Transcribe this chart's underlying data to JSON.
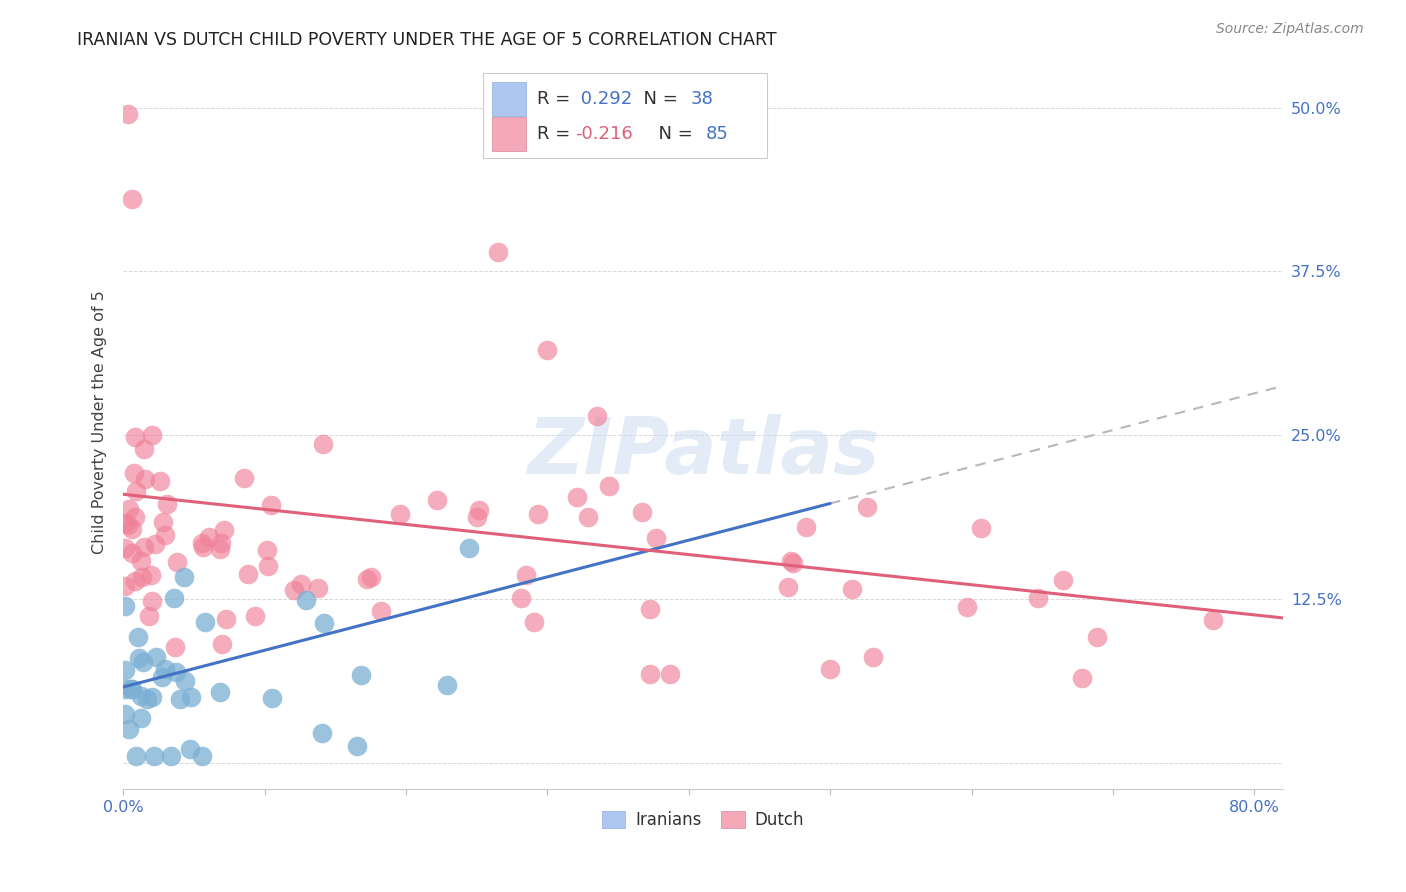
{
  "title": "IRANIAN VS DUTCH CHILD POVERTY UNDER THE AGE OF 5 CORRELATION CHART",
  "source": "Source: ZipAtlas.com",
  "ylabel": "Child Poverty Under the Age of 5",
  "ytick_values": [
    0.0,
    0.125,
    0.25,
    0.375,
    0.5
  ],
  "ytick_labels": [
    "",
    "12.5%",
    "25.0%",
    "37.5%",
    "50.0%"
  ],
  "xlim": [
    0.0,
    0.82
  ],
  "ylim": [
    -0.02,
    0.54
  ],
  "watermark": "ZIPatlas",
  "iranians_scatter_color": "#7bafd4",
  "dutch_scatter_color": "#f08098",
  "iranians_line_color": "#4472c4",
  "dutch_line_color": "#e0607a",
  "trend_line_color": "#b8b8b8",
  "iranians_R": 0.292,
  "dutch_R": -0.216,
  "iranians_N": 38,
  "dutch_N": 85,
  "legend_blue_patch": "#aec6f0",
  "legend_pink_patch": "#f5a8b8",
  "background_color": "#ffffff",
  "grid_color": "#d8d8d8",
  "axis_color": "#4472c4",
  "title_color": "#222222",
  "ylabel_color": "#444444"
}
